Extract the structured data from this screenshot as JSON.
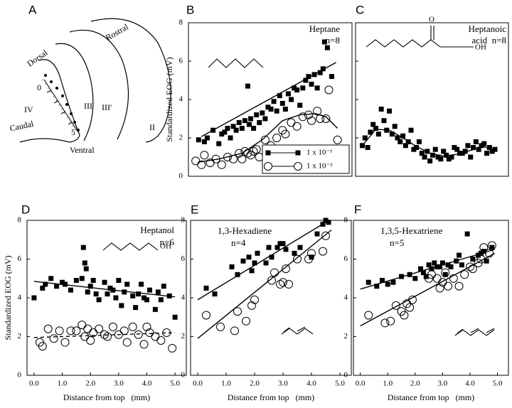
{
  "diagram": {
    "panel": "A",
    "labels": [
      "Dorsal",
      "Rostral",
      "Caudal",
      "Ventral",
      "IV",
      "III",
      "III'",
      "II",
      "0",
      "5"
    ]
  },
  "chart_data": [
    {
      "type": "scatter",
      "panel": "B",
      "annotation": [
        "Heptane",
        "n=8"
      ],
      "structure_labels": [],
      "ylabel": "Standardized EOG (mV)",
      "xlim": [
        -0.25,
        5.4
      ],
      "ylim": [
        0,
        8
      ],
      "yticks": [
        0,
        2,
        4,
        6,
        8
      ],
      "show_ytick_labels": true,
      "legend": "lower right",
      "series": [
        {
          "name": "1 x 10⁻¹",
          "marker": "square",
          "color": "#000000",
          "x": [
            0.1,
            0.3,
            0.4,
            0.6,
            0.8,
            0.9,
            1.0,
            1.1,
            1.2,
            1.3,
            1.4,
            1.5,
            1.6,
            1.7,
            1.8,
            1.85,
            1.9,
            2.0,
            2.1,
            2.2,
            2.3,
            2.4,
            2.5,
            2.6,
            2.7,
            2.8,
            2.9,
            3.0,
            3.1,
            3.2,
            3.3,
            3.4,
            3.5,
            3.6,
            3.7,
            3.8,
            3.9,
            4.0,
            4.1,
            4.2,
            4.3,
            4.4,
            4.45,
            4.55,
            4.7
          ],
          "values": [
            1.9,
            1.8,
            2.0,
            2.4,
            1.7,
            2.2,
            2.3,
            2.5,
            2.0,
            2.6,
            2.4,
            2.8,
            2.5,
            2.9,
            4.7,
            2.7,
            3.0,
            2.5,
            3.2,
            2.8,
            3.3,
            3.0,
            3.6,
            3.5,
            3.9,
            3.4,
            4.2,
            3.8,
            3.5,
            4.3,
            4.0,
            4.6,
            4.5,
            3.7,
            4.6,
            5.0,
            5.2,
            4.8,
            5.3,
            4.6,
            5.4,
            5.6,
            7.0,
            6.7,
            5.2
          ],
          "fit": {
            "x": [
              0.2,
              4.85
            ],
            "values": [
              2.07,
              5.93
            ],
            "dash": false
          }
        },
        {
          "name": "1 x 10⁻²",
          "marker": "circle",
          "color": "#000000",
          "x": [
            0.0,
            0.2,
            0.3,
            0.5,
            0.7,
            0.9,
            1.1,
            1.3,
            1.5,
            1.6,
            1.7,
            1.8,
            1.9,
            2.0,
            2.1,
            2.2,
            2.4,
            2.6,
            2.8,
            3.0,
            3.1,
            3.3,
            3.5,
            3.7,
            3.9,
            4.0,
            4.2,
            4.3,
            4.5,
            4.6,
            4.9
          ],
          "values": [
            0.8,
            0.6,
            1.1,
            0.7,
            0.9,
            0.6,
            1.0,
            0.9,
            1.2,
            0.9,
            1.3,
            1.2,
            1.1,
            1.3,
            1.4,
            1.0,
            1.9,
            1.6,
            2.0,
            2.4,
            2.2,
            2.8,
            2.6,
            3.1,
            3.2,
            2.9,
            3.4,
            3.0,
            3.0,
            4.5,
            1.9
          ],
          "fit": {
            "x": [
              0.1,
              0.8,
              1.6,
              2.3,
              3.0,
              3.6,
              4.15,
              4.5,
              4.9
            ],
            "values": [
              0.74,
              0.9,
              1.2,
              1.9,
              2.9,
              3.2,
              3.26,
              3.1,
              2.5
            ],
            "dash": false
          }
        }
      ]
    },
    {
      "type": "scatter",
      "panel": "C",
      "annotation": [
        "Heptanoic",
        "acid  n=8"
      ],
      "structure_labels": [
        "O",
        "OH"
      ],
      "xlim": [
        -0.25,
        5.4
      ],
      "ylim": [
        0,
        8
      ],
      "yticks": [
        0,
        2,
        4,
        6,
        8
      ],
      "show_ytick_labels": false,
      "series": [
        {
          "marker": "square",
          "color": "#000000",
          "x": [
            0.0,
            0.1,
            0.2,
            0.3,
            0.4,
            0.5,
            0.6,
            0.7,
            0.8,
            0.9,
            1.0,
            1.1,
            1.2,
            1.3,
            1.4,
            1.5,
            1.6,
            1.7,
            1.8,
            1.9,
            2.0,
            2.1,
            2.2,
            2.3,
            2.4,
            2.5,
            2.6,
            2.7,
            2.8,
            2.9,
            3.0,
            3.1,
            3.2,
            3.3,
            3.4,
            3.5,
            3.6,
            3.7,
            3.8,
            3.9,
            4.0,
            4.1,
            4.2,
            4.3,
            4.4,
            4.5,
            4.6,
            4.7,
            4.8,
            4.9
          ],
          "values": [
            1.6,
            2.0,
            1.5,
            2.3,
            2.7,
            2.5,
            2.2,
            3.5,
            2.9,
            2.4,
            3.4,
            2.2,
            2.6,
            2.0,
            1.8,
            2.1,
            1.6,
            1.8,
            2.4,
            1.4,
            1.5,
            1.8,
            1.2,
            1.0,
            1.3,
            0.8,
            1.1,
            1.4,
            1.0,
            0.9,
            1.3,
            1.1,
            0.9,
            1.0,
            1.5,
            1.4,
            1.2,
            1.2,
            1.3,
            1.6,
            1.0,
            1.5,
            1.8,
            1.4,
            1.6,
            1.7,
            1.2,
            1.5,
            1.3,
            1.4
          ],
          "fit": {
            "x": [
              0.0,
              0.5,
              1.0,
              1.5,
              2.0,
              2.5,
              3.0,
              3.5,
              4.0,
              4.5,
              4.9
            ],
            "values": [
              1.6,
              2.45,
              2.4,
              2.0,
              1.55,
              1.2,
              1.05,
              1.15,
              1.35,
              1.55,
              1.3
            ],
            "dash": false
          }
        }
      ]
    },
    {
      "type": "scatter",
      "panel": "D",
      "annotation": [
        "Heptanol",
        "n=6"
      ],
      "structure_labels": [
        "OH"
      ],
      "ylabel": "Standardized EOG (mV)",
      "xlabel": "Distance from top   (mm)",
      "xlim": [
        -0.25,
        5.4
      ],
      "ylim": [
        0,
        8
      ],
      "yticks": [
        0,
        2,
        4,
        6,
        8
      ],
      "show_ytick_labels": true,
      "xticks": [
        {
          "value": 0,
          "label": "0.0"
        },
        {
          "value": 1,
          "label": "1.0"
        },
        {
          "value": 2,
          "label": "2.0"
        },
        {
          "value": 3,
          "label": "3.0"
        },
        {
          "value": 4,
          "label": "4.0"
        },
        {
          "value": 5,
          "label": "5.0"
        }
      ],
      "series": [
        {
          "marker": "square",
          "color": "#000000",
          "x": [
            0.0,
            0.3,
            0.4,
            0.6,
            0.8,
            1.0,
            1.1,
            1.3,
            1.5,
            1.7,
            1.75,
            1.8,
            1.85,
            1.9,
            2.0,
            2.1,
            2.2,
            2.3,
            2.5,
            2.6,
            2.7,
            2.8,
            2.9,
            3.0,
            3.1,
            3.2,
            3.3,
            3.5,
            3.6,
            3.7,
            3.8,
            3.9,
            4.0,
            4.1,
            4.3,
            4.4,
            4.5,
            4.6,
            4.8,
            5.0
          ],
          "values": [
            4.0,
            4.5,
            4.7,
            5.0,
            4.6,
            4.8,
            4.7,
            4.4,
            4.9,
            5.0,
            6.6,
            5.8,
            5.5,
            4.3,
            4.6,
            4.9,
            4.2,
            3.9,
            4.8,
            4.2,
            4.5,
            4.4,
            4.0,
            4.9,
            3.6,
            4.3,
            4.7,
            4.1,
            3.5,
            4.2,
            4.7,
            4.0,
            3.9,
            4.4,
            3.4,
            4.3,
            3.9,
            4.6,
            4.1,
            3.0
          ],
          "fit": {
            "x": [
              0,
              5
            ],
            "values": [
              4.85,
              4.05
            ],
            "dash": false
          }
        },
        {
          "marker": "circle",
          "color": "#000000",
          "x": [
            0.2,
            0.3,
            0.5,
            0.7,
            0.9,
            1.1,
            1.3,
            1.5,
            1.7,
            1.8,
            1.9,
            2.0,
            2.1,
            2.3,
            2.5,
            2.6,
            2.8,
            3.0,
            3.2,
            3.3,
            3.5,
            3.7,
            3.9,
            4.0,
            4.1,
            4.3,
            4.5,
            4.7,
            4.9
          ],
          "values": [
            1.7,
            1.5,
            2.4,
            1.9,
            2.3,
            1.7,
            2.3,
            2.3,
            2.6,
            2.0,
            2.4,
            1.8,
            2.2,
            2.4,
            2.1,
            2.0,
            2.5,
            2.1,
            2.3,
            1.7,
            2.5,
            2.1,
            1.6,
            2.5,
            2.2,
            2.0,
            1.8,
            2.2,
            1.4
          ],
          "fit": {
            "x": [
              0,
              5
            ],
            "values": [
              1.95,
              2.2
            ],
            "dash": true
          }
        }
      ]
    },
    {
      "type": "scatter",
      "panel": "E",
      "annotation": [
        "1,3-Hexadiene",
        "n=4"
      ],
      "structure_labels": [],
      "xlabel": "Distance from top   (mm)",
      "xlim": [
        -0.25,
        5.4
      ],
      "ylim": [
        0,
        8
      ],
      "yticks": [
        0,
        2,
        4,
        6,
        8
      ],
      "show_ytick_labels": true,
      "xticks": [
        {
          "value": 0,
          "label": "0.0"
        },
        {
          "value": 1,
          "label": "1.0"
        },
        {
          "value": 2,
          "label": "2.0"
        },
        {
          "value": 3,
          "label": "3.0"
        },
        {
          "value": 4,
          "label": "4.0"
        },
        {
          "value": 5,
          "label": "5.0"
        }
      ],
      "series": [
        {
          "marker": "square",
          "color": "#000000",
          "x": [
            0.3,
            0.6,
            1.2,
            1.4,
            1.6,
            1.8,
            1.9,
            2.0,
            2.1,
            2.4,
            2.5,
            2.6,
            2.8,
            2.9,
            3.0,
            3.1,
            3.4,
            3.6,
            4.0,
            4.2,
            4.4,
            4.5,
            4.6
          ],
          "values": [
            4.5,
            4.2,
            5.6,
            5.2,
            5.9,
            6.1,
            5.4,
            5.8,
            6.3,
            5.8,
            6.6,
            6.1,
            6.6,
            6.8,
            6.8,
            6.5,
            6.3,
            6.6,
            6.1,
            7.3,
            7.8,
            8.0,
            7.9
          ],
          "fit": {
            "x": [
              0,
              4.5
            ],
            "values": [
              3.9,
              7.9
            ],
            "dash": false
          }
        },
        {
          "marker": "circle",
          "color": "#000000",
          "x": [
            0.3,
            0.8,
            1.3,
            1.4,
            1.7,
            1.9,
            2.0,
            2.6,
            2.7,
            2.9,
            3.0,
            3.1,
            3.2,
            3.5,
            3.9,
            4.0,
            4.4,
            4.5
          ],
          "values": [
            3.1,
            2.5,
            2.3,
            3.3,
            2.8,
            3.6,
            3.9,
            4.9,
            5.3,
            4.7,
            4.8,
            5.5,
            4.7,
            6.0,
            6.0,
            6.3,
            6.4,
            7.2
          ],
          "fit": {
            "x": [
              0,
              4.7
            ],
            "values": [
              1.9,
              7.5
            ],
            "dash": false
          }
        }
      ]
    },
    {
      "type": "scatter",
      "panel": "F",
      "annotation": [
        "1,3,5-Hexatriene",
        "n=5"
      ],
      "structure_labels": [],
      "xlabel": "Distance from top   (mm)",
      "xlim": [
        -0.25,
        5.4
      ],
      "ylim": [
        0,
        8
      ],
      "yticks": [
        0,
        2,
        4,
        6,
        8
      ],
      "show_ytick_labels": true,
      "xticks": [
        {
          "value": 0,
          "label": "0.0"
        },
        {
          "value": 1,
          "label": "1.0"
        },
        {
          "value": 2,
          "label": "2.0"
        },
        {
          "value": 3,
          "label": "3.0"
        },
        {
          "value": 4,
          "label": "4.0"
        },
        {
          "value": 5,
          "label": "5.0"
        }
      ],
      "series": [
        {
          "marker": "square",
          "color": "#000000",
          "x": [
            0.3,
            0.6,
            0.8,
            1.0,
            1.2,
            1.5,
            1.8,
            2.0,
            2.2,
            2.3,
            2.4,
            2.5,
            2.6,
            2.7,
            2.8,
            2.9,
            3.0,
            3.1,
            3.2,
            3.3,
            3.5,
            3.6,
            3.7,
            3.9,
            4.1,
            4.3,
            4.4,
            4.5,
            4.6,
            4.8
          ],
          "values": [
            4.8,
            4.6,
            4.9,
            4.7,
            4.8,
            5.1,
            5.2,
            5.0,
            5.5,
            5.3,
            5.1,
            5.7,
            5.5,
            5.8,
            5.6,
            5.6,
            5.8,
            5.2,
            5.7,
            5.6,
            5.9,
            6.2,
            5.7,
            7.3,
            6.0,
            6.2,
            6.3,
            6.4,
            5.9,
            6.6
          ],
          "fit": {
            "x": [
              0,
              4.9
            ],
            "values": [
              4.45,
              6.5
            ],
            "dash": false
          }
        },
        {
          "marker": "circle",
          "color": "#000000",
          "x": [
            0.3,
            0.9,
            1.1,
            1.3,
            1.5,
            1.6,
            1.7,
            1.8,
            1.9,
            2.5,
            2.6,
            2.8,
            2.9,
            3.0,
            3.1,
            3.2,
            3.4,
            3.6,
            3.8,
            4.0,
            4.1,
            4.3,
            4.4,
            4.5,
            4.7,
            4.8
          ],
          "values": [
            3.1,
            2.7,
            2.8,
            3.6,
            3.3,
            3.1,
            3.7,
            3.5,
            3.9,
            5.0,
            5.2,
            5.0,
            4.5,
            4.8,
            5.3,
            4.6,
            5.0,
            4.6,
            5.2,
            5.6,
            5.5,
            5.8,
            6.0,
            6.6,
            6.3,
            6.7
          ],
          "fit": {
            "x": [
              0,
              4.9
            ],
            "values": [
              2.55,
              6.3
            ],
            "dash": false
          }
        }
      ]
    }
  ]
}
